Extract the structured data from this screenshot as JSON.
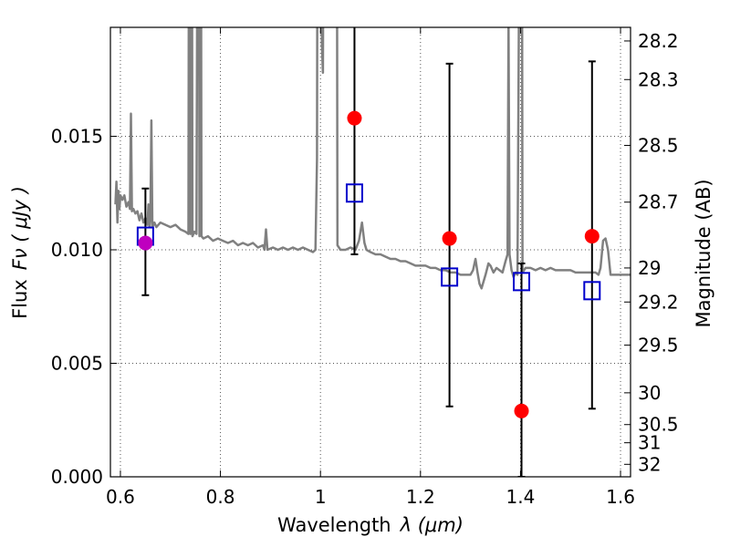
{
  "chart_data": {
    "type": "scatter",
    "title": "",
    "xlabel_main": "Wavelength",
    "xlabel_sym": "λ (μm)",
    "ylabel_left_main": "Flux",
    "ylabel_left_sym": "Fν ( μJy )",
    "ylabel_right": "Magnitude (AB)",
    "xlim": [
      0.58,
      1.62
    ],
    "ylim": [
      0.0,
      0.0198
    ],
    "grid": true,
    "x_ticks": [
      {
        "value": 0.6,
        "label": "0.6"
      },
      {
        "value": 0.8,
        "label": "0.8"
      },
      {
        "value": 1.0,
        "label": "1"
      },
      {
        "value": 1.2,
        "label": "1.2"
      },
      {
        "value": 1.4,
        "label": "1.4"
      },
      {
        "value": 1.6,
        "label": "1.6"
      }
    ],
    "y_ticks": [
      {
        "value": 0.0,
        "label": "0.000"
      },
      {
        "value": 0.005,
        "label": "0.005"
      },
      {
        "value": 0.01,
        "label": "0.010"
      },
      {
        "value": 0.015,
        "label": "0.015"
      }
    ],
    "right_ticks": [
      {
        "label": "28.2",
        "flux": 0.0192
      },
      {
        "label": "28.3",
        "flux": 0.0175
      },
      {
        "label": "28.5",
        "flux": 0.0146
      },
      {
        "label": "28.7",
        "flux": 0.0121
      },
      {
        "label": "29",
        "flux": 0.0092
      },
      {
        "label": "29.2",
        "flux": 0.0077
      },
      {
        "label": "29.5",
        "flux": 0.0058
      },
      {
        "label": "30",
        "flux": 0.0037
      },
      {
        "label": "30.5",
        "flux": 0.0023
      },
      {
        "label": "31",
        "flux": 0.0015
      },
      {
        "label": "32",
        "flux": 0.00055
      }
    ],
    "series": [
      {
        "kind": "spectrum",
        "color": "#808080",
        "points": [
          [
            0.59,
            0.012
          ],
          [
            0.592,
            0.013
          ],
          [
            0.594,
            0.0112
          ],
          [
            0.596,
            0.0126
          ],
          [
            0.598,
            0.0118
          ],
          [
            0.6,
            0.0124
          ],
          [
            0.604,
            0.0122
          ],
          [
            0.608,
            0.0124
          ],
          [
            0.612,
            0.0119
          ],
          [
            0.616,
            0.0121
          ],
          [
            0.619,
            0.0118
          ],
          [
            0.621,
            0.016
          ],
          [
            0.623,
            0.0117
          ],
          [
            0.626,
            0.0118
          ],
          [
            0.63,
            0.0116
          ],
          [
            0.634,
            0.0117
          ],
          [
            0.638,
            0.0113
          ],
          [
            0.642,
            0.0116
          ],
          [
            0.646,
            0.0112
          ],
          [
            0.65,
            0.0114
          ],
          [
            0.654,
            0.0111
          ],
          [
            0.656,
            0.012
          ],
          [
            0.658,
            0.011
          ],
          [
            0.66,
            0.0114
          ],
          [
            0.662,
            0.0157
          ],
          [
            0.664,
            0.011
          ],
          [
            0.668,
            0.0112
          ],
          [
            0.672,
            0.011
          ],
          [
            0.68,
            0.0112
          ],
          [
            0.69,
            0.0111
          ],
          [
            0.7,
            0.011
          ],
          [
            0.71,
            0.0111
          ],
          [
            0.72,
            0.0109
          ],
          [
            0.73,
            0.0108
          ],
          [
            0.736,
            0.0107
          ],
          [
            0.738,
            0.04
          ],
          [
            0.74,
            0.0107
          ],
          [
            0.742,
            0.04
          ],
          [
            0.744,
            0.0106
          ],
          [
            0.748,
            0.0108
          ],
          [
            0.752,
            0.0107
          ],
          [
            0.756,
            0.04
          ],
          [
            0.758,
            0.0106
          ],
          [
            0.76,
            0.04
          ],
          [
            0.762,
            0.0106
          ],
          [
            0.766,
            0.0105
          ],
          [
            0.775,
            0.0106
          ],
          [
            0.785,
            0.0104
          ],
          [
            0.795,
            0.0105
          ],
          [
            0.805,
            0.0104
          ],
          [
            0.815,
            0.0103
          ],
          [
            0.825,
            0.0104
          ],
          [
            0.835,
            0.0102
          ],
          [
            0.845,
            0.0103
          ],
          [
            0.855,
            0.0102
          ],
          [
            0.865,
            0.0103
          ],
          [
            0.875,
            0.0101
          ],
          [
            0.885,
            0.0102
          ],
          [
            0.888,
            0.01
          ],
          [
            0.891,
            0.0109
          ],
          [
            0.894,
            0.01
          ],
          [
            0.905,
            0.0101
          ],
          [
            0.915,
            0.01
          ],
          [
            0.925,
            0.0101
          ],
          [
            0.935,
            0.01
          ],
          [
            0.945,
            0.0101
          ],
          [
            0.955,
            0.01
          ],
          [
            0.965,
            0.0101
          ],
          [
            0.975,
            0.01
          ],
          [
            0.985,
            0.0099
          ],
          [
            0.99,
            0.01
          ],
          [
            0.993,
            0.014
          ],
          [
            0.995,
            0.04
          ],
          [
            0.999,
            0.04
          ],
          [
            1.001,
            0.024
          ],
          [
            1.003,
            0.019
          ],
          [
            1.005,
            0.0178
          ],
          [
            1.008,
            0.04
          ],
          [
            1.032,
            0.04
          ],
          [
            1.034,
            0.0102
          ],
          [
            1.04,
            0.01
          ],
          [
            1.05,
            0.01
          ],
          [
            1.06,
            0.0101
          ],
          [
            1.07,
            0.01
          ],
          [
            1.077,
            0.0104
          ],
          [
            1.083,
            0.0112
          ],
          [
            1.088,
            0.0103
          ],
          [
            1.092,
            0.01
          ],
          [
            1.1,
            0.0099
          ],
          [
            1.11,
            0.0098
          ],
          [
            1.12,
            0.0098
          ],
          [
            1.13,
            0.0097
          ],
          [
            1.14,
            0.0096
          ],
          [
            1.15,
            0.0096
          ],
          [
            1.16,
            0.0095
          ],
          [
            1.17,
            0.0095
          ],
          [
            1.18,
            0.0094
          ],
          [
            1.19,
            0.0093
          ],
          [
            1.2,
            0.0093
          ],
          [
            1.21,
            0.0093
          ],
          [
            1.22,
            0.0092
          ],
          [
            1.23,
            0.0092
          ],
          [
            1.24,
            0.0091
          ],
          [
            1.25,
            0.0091
          ],
          [
            1.26,
            0.009
          ],
          [
            1.27,
            0.009
          ],
          [
            1.28,
            0.0089
          ],
          [
            1.29,
            0.0089
          ],
          [
            1.3,
            0.0089
          ],
          [
            1.305,
            0.0091
          ],
          [
            1.31,
            0.0096
          ],
          [
            1.314,
            0.009
          ],
          [
            1.318,
            0.0085
          ],
          [
            1.322,
            0.0083
          ],
          [
            1.326,
            0.0086
          ],
          [
            1.33,
            0.0089
          ],
          [
            1.336,
            0.0094
          ],
          [
            1.34,
            0.0093
          ],
          [
            1.346,
            0.009
          ],
          [
            1.352,
            0.0092
          ],
          [
            1.358,
            0.0091
          ],
          [
            1.364,
            0.009
          ],
          [
            1.37,
            0.0095
          ],
          [
            1.374,
            0.0098
          ],
          [
            1.376,
            0.02
          ],
          [
            1.378,
            0.0098
          ],
          [
            1.382,
            0.0091
          ],
          [
            1.386,
            0.0088
          ],
          [
            1.39,
            0.009
          ],
          [
            1.394,
            0.0089
          ],
          [
            1.398,
            0.025
          ],
          [
            1.402,
            0.04
          ],
          [
            1.404,
            0.009
          ],
          [
            1.41,
            0.0092
          ],
          [
            1.42,
            0.0092
          ],
          [
            1.43,
            0.0091
          ],
          [
            1.44,
            0.0092
          ],
          [
            1.45,
            0.0091
          ],
          [
            1.46,
            0.0092
          ],
          [
            1.47,
            0.0091
          ],
          [
            1.48,
            0.0091
          ],
          [
            1.49,
            0.0091
          ],
          [
            1.5,
            0.0091
          ],
          [
            1.51,
            0.009
          ],
          [
            1.52,
            0.009
          ],
          [
            1.53,
            0.009
          ],
          [
            1.54,
            0.009
          ],
          [
            1.55,
            0.009
          ],
          [
            1.556,
            0.0089
          ],
          [
            1.56,
            0.0092
          ],
          [
            1.565,
            0.0104
          ],
          [
            1.57,
            0.0105
          ],
          [
            1.575,
            0.01
          ],
          [
            1.58,
            0.0089
          ],
          [
            1.59,
            0.0089
          ],
          [
            1.6,
            0.0089
          ],
          [
            1.61,
            0.0089
          ],
          [
            1.62,
            0.0089
          ]
        ]
      },
      {
        "kind": "observed",
        "marker": "circle",
        "color": "#ff0000",
        "points": [
          {
            "x": 0.65,
            "y": 0.0103,
            "yerr_low": 0.008,
            "yerr_high": 0.0127,
            "color": "#bf00bf"
          },
          {
            "x": 1.068,
            "y": 0.0158,
            "yerr_low": 0.0098,
            "yerr_high": 0.02
          },
          {
            "x": 1.258,
            "y": 0.0105,
            "yerr_low": 0.0031,
            "yerr_high": 0.0182
          },
          {
            "x": 1.402,
            "y": 0.0029,
            "yerr_low": 0.0,
            "yerr_high": 0.0094
          },
          {
            "x": 1.543,
            "y": 0.0106,
            "yerr_low": 0.003,
            "yerr_high": 0.0183
          }
        ]
      },
      {
        "kind": "model",
        "marker": "open-square",
        "color": "#0000cc",
        "points": [
          {
            "x": 0.65,
            "y": 0.0106
          },
          {
            "x": 1.068,
            "y": 0.0125
          },
          {
            "x": 1.258,
            "y": 0.0088
          },
          {
            "x": 1.402,
            "y": 0.0086
          },
          {
            "x": 1.543,
            "y": 0.0082
          }
        ]
      }
    ]
  }
}
